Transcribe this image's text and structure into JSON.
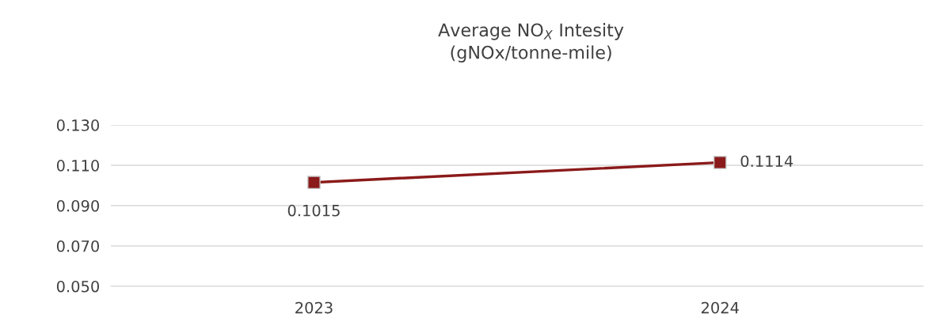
{
  "chart_data": {
    "type": "line",
    "title": "Average NO$_{X}$ Intesity\n(gNOx/tonne-mile)",
    "categories": [
      "2023",
      "2024"
    ],
    "series": [
      {
        "color": "#8b1a1a",
        "values": [
          0.1015,
          0.1114
        ]
      }
    ],
    "ylim": [
      0.05,
      0.13
    ],
    "yticks": [
      {
        "value": 0.05,
        "label": "0.050"
      },
      {
        "value": 0.07,
        "label": "0.070"
      },
      {
        "value": 0.09,
        "label": "0.090"
      },
      {
        "value": 0.11,
        "label": "0.110"
      },
      {
        "value": 0.13,
        "label": "0.130"
      }
    ],
    "grid": "y",
    "marker": "square",
    "line_style": "solid",
    "data_labels": true,
    "legend": false
  }
}
